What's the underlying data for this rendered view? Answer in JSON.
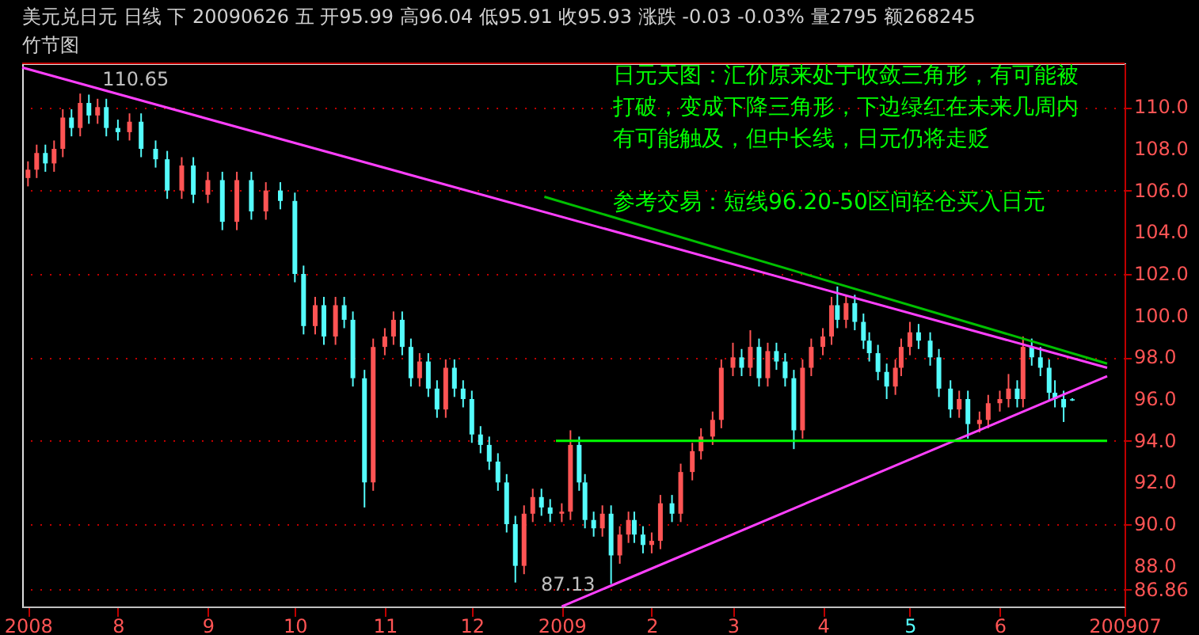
{
  "chart_data": {
    "type": "candlestick",
    "title": "美元兑日元  日线  下  20090626  五  开95.99  高96.04  低95.91  收95.93  涨跌  -0.03  -0.03%  量2795  额268245",
    "subtitle": "竹节图",
    "x": [
      "2008-07-01",
      "2008-07-04",
      "2008-07-07",
      "2008-07-10",
      "2008-07-13",
      "2008-07-16",
      "2008-07-19",
      "2008-07-22",
      "2008-07-25",
      "2008-07-28",
      "2008-08-01",
      "2008-08-05",
      "2008-08-09",
      "2008-08-14",
      "2008-08-18",
      "2008-08-23",
      "2008-08-27",
      "2008-09-01",
      "2008-09-06",
      "2008-09-11",
      "2008-09-16",
      "2008-09-21",
      "2008-09-26",
      "2008-10-01",
      "2008-10-04",
      "2008-10-08",
      "2008-10-11",
      "2008-10-15",
      "2008-10-18",
      "2008-10-21",
      "2008-10-25",
      "2008-10-28",
      "2008-11-01",
      "2008-11-04",
      "2008-11-07",
      "2008-11-10",
      "2008-11-13",
      "2008-11-16",
      "2008-11-19",
      "2008-11-22",
      "2008-11-25",
      "2008-11-28",
      "2008-12-01",
      "2008-12-04",
      "2008-12-07",
      "2008-12-10",
      "2008-12-13",
      "2008-12-16",
      "2008-12-19",
      "2008-12-22",
      "2008-12-25",
      "2008-12-28",
      "2009-01-01",
      "2009-01-04",
      "2009-01-07",
      "2009-01-09",
      "2009-01-12",
      "2009-01-15",
      "2009-01-18",
      "2009-01-21",
      "2009-01-24",
      "2009-01-26",
      "2009-01-29",
      "2009-02-01",
      "2009-02-04",
      "2009-02-08",
      "2009-02-11",
      "2009-02-15",
      "2009-02-18",
      "2009-02-22",
      "2009-02-25",
      "2009-03-01",
      "2009-03-04",
      "2009-03-07",
      "2009-03-10",
      "2009-03-13",
      "2009-03-16",
      "2009-03-19",
      "2009-03-22",
      "2009-03-25",
      "2009-03-28",
      "2009-04-01",
      "2009-04-04",
      "2009-04-06",
      "2009-04-09",
      "2009-04-12",
      "2009-04-15",
      "2009-04-17",
      "2009-04-20",
      "2009-04-23",
      "2009-04-26",
      "2009-04-28",
      "2009-05-01",
      "2009-05-04",
      "2009-05-08",
      "2009-05-11",
      "2009-05-15",
      "2009-05-18",
      "2009-05-21",
      "2009-05-25",
      "2009-05-28",
      "2009-06-01",
      "2009-06-04",
      "2009-06-07",
      "2009-06-09",
      "2009-06-12",
      "2009-06-15",
      "2009-06-18",
      "2009-06-20",
      "2009-06-23",
      "2009-06-26"
    ],
    "ohlc": [
      [
        106.6,
        107.4,
        106.2,
        107.0
      ],
      [
        107.0,
        108.2,
        106.6,
        107.8
      ],
      [
        107.8,
        108.2,
        106.9,
        107.3
      ],
      [
        107.3,
        108.4,
        106.9,
        108.0
      ],
      [
        108.0,
        109.9,
        107.6,
        109.5
      ],
      [
        109.5,
        109.9,
        108.6,
        109.0
      ],
      [
        109.0,
        110.65,
        108.6,
        110.2
      ],
      [
        110.2,
        110.6,
        109.2,
        109.6
      ],
      [
        109.6,
        110.4,
        109.2,
        110.0
      ],
      [
        110.0,
        110.4,
        108.6,
        109.0
      ],
      [
        109.0,
        109.4,
        108.4,
        108.8
      ],
      [
        108.8,
        109.7,
        108.4,
        109.3
      ],
      [
        109.3,
        109.7,
        107.6,
        108.0
      ],
      [
        108.0,
        108.4,
        107.1,
        107.5
      ],
      [
        107.5,
        107.9,
        105.6,
        106.0
      ],
      [
        106.0,
        107.6,
        105.6,
        107.2
      ],
      [
        107.2,
        107.6,
        105.4,
        105.8
      ],
      [
        105.8,
        106.9,
        105.4,
        106.5
      ],
      [
        106.5,
        106.9,
        104.1,
        104.5
      ],
      [
        104.5,
        106.9,
        104.1,
        106.5
      ],
      [
        106.5,
        106.9,
        104.6,
        105.0
      ],
      [
        105.0,
        106.4,
        104.6,
        106.0
      ],
      [
        106.0,
        106.4,
        105.1,
        105.5
      ],
      [
        105.5,
        105.9,
        101.6,
        102.0
      ],
      [
        102.0,
        102.4,
        99.1,
        99.5
      ],
      [
        99.5,
        100.9,
        99.1,
        100.5
      ],
      [
        100.5,
        100.9,
        98.6,
        99.0
      ],
      [
        99.0,
        100.9,
        98.6,
        100.5
      ],
      [
        100.5,
        100.9,
        99.4,
        99.8
      ],
      [
        99.8,
        100.2,
        96.6,
        97.0
      ],
      [
        97.0,
        97.4,
        90.8,
        92.0
      ],
      [
        92.0,
        98.9,
        91.6,
        98.5
      ],
      [
        98.5,
        99.4,
        98.1,
        99.0
      ],
      [
        99.0,
        100.2,
        98.6,
        99.8
      ],
      [
        99.8,
        100.2,
        98.1,
        98.5
      ],
      [
        98.5,
        98.9,
        96.6,
        97.0
      ],
      [
        97.0,
        98.2,
        96.6,
        97.8
      ],
      [
        97.8,
        98.2,
        96.1,
        96.5
      ],
      [
        96.5,
        96.9,
        95.1,
        95.5
      ],
      [
        95.5,
        97.9,
        95.1,
        97.5
      ],
      [
        97.5,
        97.9,
        96.1,
        96.5
      ],
      [
        96.5,
        96.9,
        95.6,
        96.0
      ],
      [
        96.0,
        96.4,
        93.9,
        94.3
      ],
      [
        94.3,
        94.7,
        93.4,
        93.8
      ],
      [
        93.8,
        94.2,
        92.6,
        93.0
      ],
      [
        93.0,
        93.4,
        91.6,
        92.0
      ],
      [
        92.0,
        92.4,
        89.6,
        90.0
      ],
      [
        90.0,
        90.4,
        87.2,
        88.0
      ],
      [
        88.0,
        90.9,
        87.6,
        90.5
      ],
      [
        90.5,
        91.7,
        90.1,
        91.3
      ],
      [
        91.3,
        91.7,
        90.4,
        90.8
      ],
      [
        90.8,
        91.2,
        90.1,
        90.5
      ],
      [
        90.5,
        91.0,
        90.1,
        90.6
      ],
      [
        90.6,
        94.5,
        90.2,
        93.8
      ],
      [
        93.8,
        94.2,
        91.6,
        92.0
      ],
      [
        92.0,
        92.4,
        89.8,
        90.2
      ],
      [
        90.2,
        90.6,
        89.4,
        89.8
      ],
      [
        89.8,
        90.9,
        89.4,
        90.5
      ],
      [
        90.5,
        90.9,
        87.13,
        88.5
      ],
      [
        88.5,
        89.9,
        88.1,
        89.5
      ],
      [
        89.5,
        90.6,
        89.1,
        90.2
      ],
      [
        90.2,
        90.6,
        89.1,
        89.5
      ],
      [
        89.5,
        89.9,
        88.6,
        89.0
      ],
      [
        89.0,
        89.6,
        88.6,
        89.2
      ],
      [
        89.2,
        91.4,
        88.8,
        91.0
      ],
      [
        91.0,
        91.4,
        90.1,
        90.5
      ],
      [
        90.5,
        92.9,
        90.1,
        92.5
      ],
      [
        92.5,
        93.9,
        92.1,
        93.5
      ],
      [
        93.5,
        94.6,
        93.1,
        94.2
      ],
      [
        94.2,
        95.4,
        93.8,
        95.0
      ],
      [
        95.0,
        97.9,
        94.6,
        97.5
      ],
      [
        97.5,
        98.7,
        97.1,
        98.0
      ],
      [
        98.0,
        98.4,
        97.1,
        97.5
      ],
      [
        97.5,
        99.3,
        97.1,
        98.5
      ],
      [
        98.5,
        98.9,
        96.6,
        97.0
      ],
      [
        97.0,
        98.7,
        96.6,
        98.3
      ],
      [
        98.3,
        98.7,
        97.4,
        97.8
      ],
      [
        97.8,
        98.2,
        96.6,
        97.0
      ],
      [
        97.0,
        97.4,
        93.6,
        94.5
      ],
      [
        94.5,
        97.9,
        94.1,
        97.5
      ],
      [
        97.5,
        98.9,
        97.1,
        98.5
      ],
      [
        98.5,
        99.4,
        98.1,
        99.0
      ],
      [
        99.0,
        100.9,
        98.6,
        100.5
      ],
      [
        100.5,
        101.4,
        99.4,
        99.8
      ],
      [
        99.8,
        101.0,
        99.4,
        100.6
      ],
      [
        100.6,
        101.0,
        99.3,
        99.7
      ],
      [
        99.7,
        100.1,
        98.4,
        98.8
      ],
      [
        98.8,
        99.2,
        97.8,
        98.2
      ],
      [
        98.2,
        98.6,
        96.9,
        97.3
      ],
      [
        97.3,
        97.7,
        96.0,
        96.6
      ],
      [
        96.6,
        97.9,
        96.2,
        97.5
      ],
      [
        97.5,
        98.9,
        97.1,
        98.5
      ],
      [
        98.5,
        99.7,
        98.1,
        99.2
      ],
      [
        99.2,
        99.6,
        98.4,
        98.8
      ],
      [
        98.8,
        99.2,
        97.6,
        98.0
      ],
      [
        98.0,
        98.4,
        96.1,
        96.5
      ],
      [
        96.5,
        96.9,
        95.1,
        95.5
      ],
      [
        95.5,
        96.4,
        95.1,
        96.0
      ],
      [
        96.0,
        96.4,
        94.1,
        94.8
      ],
      [
        94.8,
        95.4,
        94.4,
        95.0
      ],
      [
        95.0,
        96.2,
        94.6,
        95.8
      ],
      [
        95.8,
        96.4,
        95.4,
        96.0
      ],
      [
        96.0,
        97.2,
        95.6,
        96.5
      ],
      [
        96.5,
        96.9,
        95.6,
        96.0
      ],
      [
        96.0,
        99.0,
        95.6,
        98.5
      ],
      [
        98.5,
        98.9,
        97.6,
        98.0
      ],
      [
        98.0,
        98.5,
        97.1,
        97.5
      ],
      [
        97.5,
        97.9,
        95.9,
        96.3
      ],
      [
        96.3,
        96.9,
        95.6,
        96.0
      ],
      [
        96.0,
        96.4,
        94.9,
        95.6
      ],
      [
        95.99,
        96.04,
        95.91,
        95.93
      ]
    ],
    "series": [
      {
        "type": "line",
        "color": "#ff40ff",
        "x": [
          "2008-06-29",
          "2009-07-08"
        ],
        "values": [
          111.9,
          97.5
        ]
      },
      {
        "type": "line",
        "color": "#00c000",
        "x": [
          "2008-12-26",
          "2009-07-08"
        ],
        "values": [
          105.7,
          97.7
        ]
      },
      {
        "type": "line",
        "color": "#ff40ff",
        "x": [
          "2009-01-01",
          "2009-07-08"
        ],
        "values": [
          86.05,
          97.1
        ]
      },
      {
        "type": "line",
        "color": "#00ff00",
        "x": [
          "2008-12-30",
          "2009-07-08"
        ],
        "values": [
          94.0,
          94.0
        ]
      }
    ],
    "xlim": [
      "2008-06-29",
      "2009-07-14"
    ],
    "xticks": [
      {
        "value": "2008-07-01",
        "label": "2008"
      },
      {
        "value": "2008-08-01",
        "label": "8"
      },
      {
        "value": "2008-09-01",
        "label": "9"
      },
      {
        "value": "2008-10-01",
        "label": "10"
      },
      {
        "value": "2008-11-01",
        "label": "11"
      },
      {
        "value": "2008-12-01",
        "label": "12"
      },
      {
        "value": "2009-01-01",
        "label": "2009"
      },
      {
        "value": "2009-02-01",
        "label": "2"
      },
      {
        "value": "2009-03-01",
        "label": "3"
      },
      {
        "value": "2009-04-01",
        "label": "4"
      },
      {
        "value": "2009-05-01",
        "label": "5"
      },
      {
        "value": "2009-06-01",
        "label": "6"
      },
      {
        "value": "2009-07-14",
        "label": "200907"
      }
    ],
    "ylim": [
      86.05,
      112.1
    ],
    "yticks": [
      {
        "value": 86.86,
        "label": "86.86"
      },
      {
        "value": 88,
        "label": "88.0"
      },
      {
        "value": 90,
        "label": "90.0"
      },
      {
        "value": 92,
        "label": "92.0"
      },
      {
        "value": 94,
        "label": "94.0"
      },
      {
        "value": 96,
        "label": "96.0"
      },
      {
        "value": 98,
        "label": "98.0"
      },
      {
        "value": 100,
        "label": "100.0"
      },
      {
        "value": 102,
        "label": "102.0"
      },
      {
        "value": 104,
        "label": "104.0"
      },
      {
        "value": 106,
        "label": "106.0"
      },
      {
        "value": 108,
        "label": "108.0"
      },
      {
        "value": 110,
        "label": "110.0"
      }
    ],
    "grid": "y",
    "annotations": [
      {
        "text": "110.65",
        "x": "2008-07-19",
        "y": 110.65
      },
      {
        "text": "87.13",
        "x": "2009-01-18",
        "y": 87.13
      },
      "日元天图：汇价原来处于收敛三角形，有可能被",
      "打破，变成下降三角形，下边绿红在未来几周内",
      "有可能触及，但中长线，日元仍将走贬",
      "参考交易：短线96.20-50区间轻仓买入日元"
    ]
  }
}
